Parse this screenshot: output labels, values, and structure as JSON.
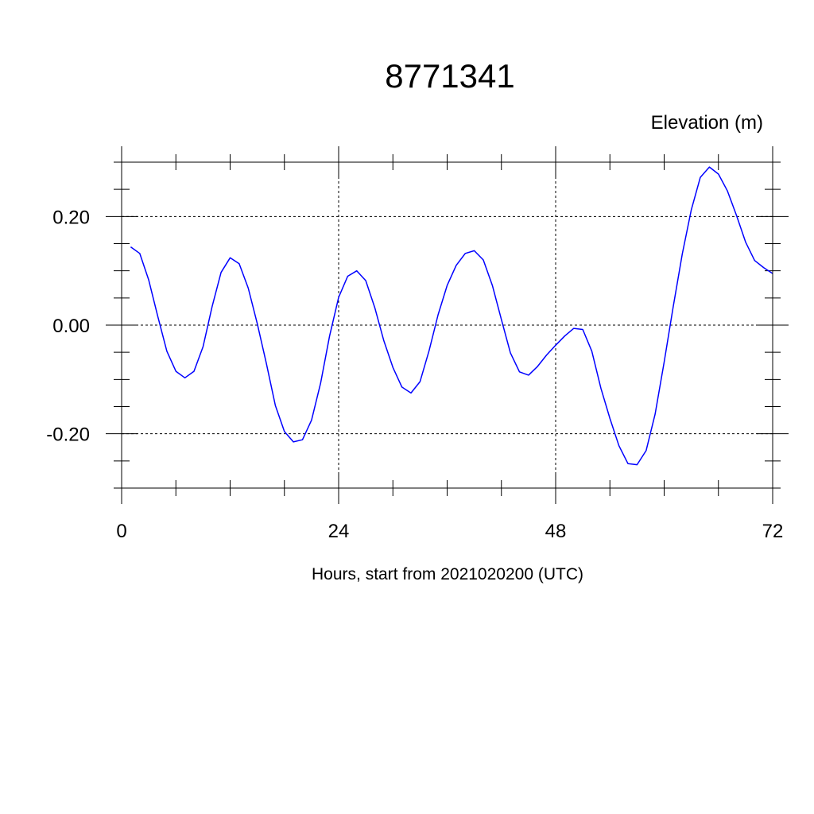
{
  "chart_data": {
    "type": "line",
    "title": "8771341",
    "ylabel": "Elevation (m)",
    "xlabel": "Hours, start from 2021020200 (UTC)",
    "xlim": [
      0,
      72
    ],
    "ylim": [
      -0.3,
      0.3
    ],
    "x_ticks": [
      0,
      24,
      48,
      72
    ],
    "x_tick_labels": [
      "0",
      "24",
      "48",
      "72"
    ],
    "y_ticks": [
      -0.2,
      0.0,
      0.2
    ],
    "y_tick_labels": [
      "-0.20",
      "0.00",
      "0.20"
    ],
    "grid": true,
    "series": [
      {
        "color": "#0000ff",
        "x": [
          1,
          2,
          3,
          4,
          5,
          6,
          7,
          8,
          9,
          10,
          11,
          12,
          13,
          14,
          15,
          16,
          17,
          18,
          19,
          20,
          21,
          22,
          23,
          24,
          25,
          26,
          27,
          28,
          29,
          30,
          31,
          32,
          33,
          34,
          35,
          36,
          37,
          38,
          39,
          40,
          41,
          42,
          43,
          44,
          45,
          46,
          47,
          48,
          49,
          50,
          51,
          52,
          53,
          54,
          55,
          56,
          57,
          58,
          59,
          60,
          61,
          62,
          63,
          64,
          65,
          66,
          67,
          68,
          69,
          70,
          71,
          72
        ],
        "values": [
          0.144,
          0.132,
          0.083,
          0.016,
          -0.048,
          -0.085,
          -0.097,
          -0.085,
          -0.04,
          0.034,
          0.097,
          0.124,
          0.113,
          0.068,
          0.003,
          -0.07,
          -0.148,
          -0.196,
          -0.215,
          -0.211,
          -0.175,
          -0.107,
          -0.02,
          0.051,
          0.09,
          0.1,
          0.082,
          0.032,
          -0.029,
          -0.078,
          -0.114,
          -0.125,
          -0.104,
          -0.047,
          0.019,
          0.073,
          0.11,
          0.132,
          0.137,
          0.12,
          0.073,
          0.01,
          -0.051,
          -0.086,
          -0.092,
          -0.076,
          -0.055,
          -0.037,
          -0.02,
          -0.006,
          -0.008,
          -0.048,
          -0.116,
          -0.172,
          -0.222,
          -0.255,
          -0.257,
          -0.231,
          -0.164,
          -0.068,
          0.034,
          0.131,
          0.212,
          0.272,
          0.291,
          0.278,
          0.247,
          0.202,
          0.153,
          0.119,
          0.106,
          0.095
        ]
      }
    ]
  }
}
